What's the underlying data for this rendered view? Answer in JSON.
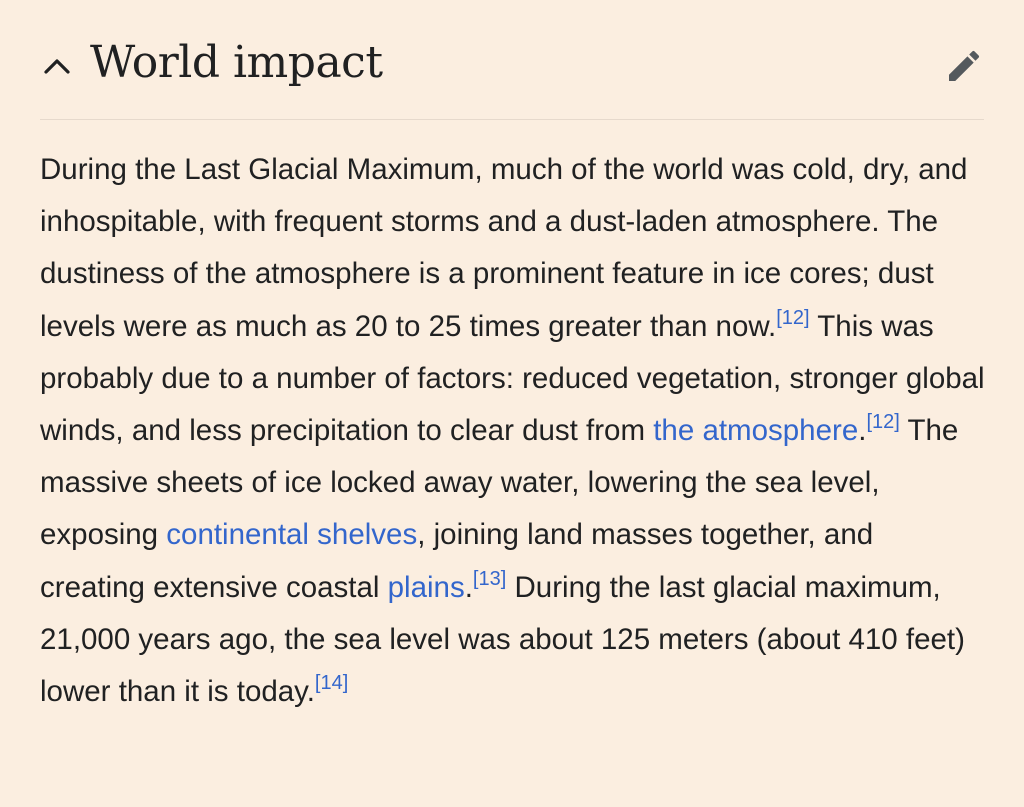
{
  "section": {
    "title": "World impact",
    "icons": {
      "collapse": "chevron-up-icon",
      "edit": "pencil-icon"
    }
  },
  "paragraph": {
    "t1": "During the Last Glacial Maximum, much of the world was cold, dry, and inhospitable, with frequent storms and a dust-laden atmosphere. The dustiness of the atmosphere is a prominent feature in ice cores; dust levels were as much as 20 to 25 times greater than now.",
    "ref1": "[12]",
    "t2": " This was probably due to a number of factors: reduced vegetation, stronger global winds, and less precipitation to clear dust from ",
    "link1": "the atmosphere",
    "t3": ".",
    "ref2": "[12]",
    "t4": " The massive sheets of ice locked away water, lowering the sea level, exposing ",
    "link2": "continental shelves",
    "t5": ", joining land masses together, and creating extensive coastal ",
    "link3": "plains",
    "t6": ".",
    "ref3": "[13]",
    "t7": " During the last glacial maximum, 21,000 years ago, the sea level was about 125 meters (about 410 feet) lower than it is today.",
    "ref4": "[14]"
  },
  "colors": {
    "background": "#fbeee0",
    "text": "#202122",
    "link": "#3366cc",
    "icon": "#54595d",
    "divider": "#e6d9cc"
  }
}
